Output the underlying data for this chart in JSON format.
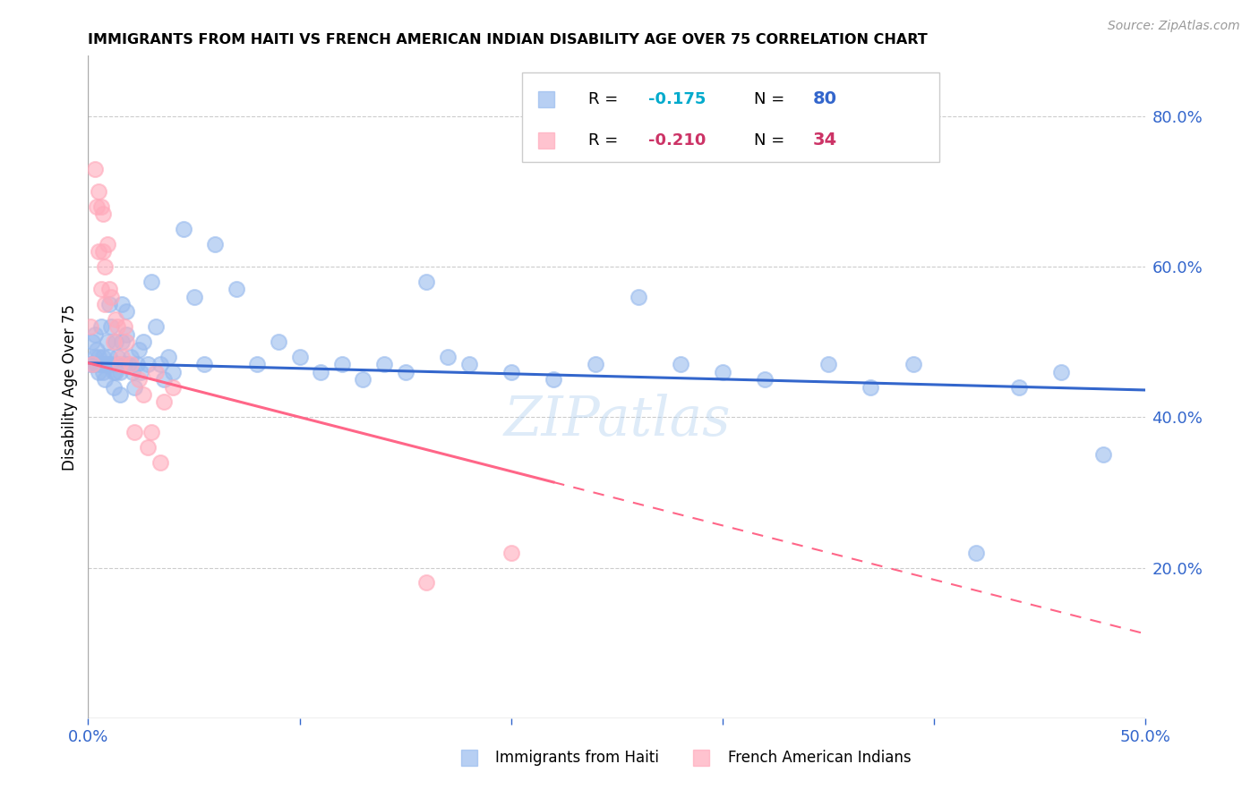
{
  "title": "IMMIGRANTS FROM HAITI VS FRENCH AMERICAN INDIAN DISABILITY AGE OVER 75 CORRELATION CHART",
  "source": "Source: ZipAtlas.com",
  "ylabel": "Disability Age Over 75",
  "blue_label": "Immigrants from Haiti",
  "pink_label": "French American Indians",
  "blue_R": -0.175,
  "blue_N": 80,
  "pink_R": -0.21,
  "pink_N": 34,
  "blue_color": "#99BBEE",
  "pink_color": "#FFAABB",
  "blue_line_color": "#3366CC",
  "pink_line_color": "#FF6688",
  "xlim": [
    0.0,
    0.5
  ],
  "ylim": [
    0.0,
    0.88
  ],
  "xtick_values": [
    0.0,
    0.1,
    0.2,
    0.3,
    0.4,
    0.5
  ],
  "ytick_right_values": [
    0.2,
    0.4,
    0.6,
    0.8
  ],
  "blue_intercept": 0.472,
  "blue_slope": -0.072,
  "pink_intercept": 0.472,
  "pink_slope": -0.72,
  "blue_x": [
    0.001,
    0.002,
    0.002,
    0.003,
    0.003,
    0.004,
    0.004,
    0.005,
    0.005,
    0.006,
    0.006,
    0.006,
    0.007,
    0.007,
    0.008,
    0.008,
    0.009,
    0.009,
    0.01,
    0.01,
    0.011,
    0.011,
    0.012,
    0.012,
    0.013,
    0.013,
    0.014,
    0.014,
    0.015,
    0.015,
    0.016,
    0.016,
    0.017,
    0.018,
    0.018,
    0.019,
    0.02,
    0.021,
    0.022,
    0.023,
    0.024,
    0.025,
    0.026,
    0.028,
    0.03,
    0.032,
    0.034,
    0.036,
    0.038,
    0.04,
    0.045,
    0.05,
    0.055,
    0.06,
    0.07,
    0.08,
    0.09,
    0.1,
    0.11,
    0.12,
    0.13,
    0.14,
    0.15,
    0.16,
    0.17,
    0.18,
    0.2,
    0.22,
    0.24,
    0.26,
    0.28,
    0.3,
    0.32,
    0.35,
    0.37,
    0.39,
    0.42,
    0.44,
    0.46,
    0.48
  ],
  "blue_y": [
    0.47,
    0.47,
    0.5,
    0.48,
    0.51,
    0.47,
    0.49,
    0.46,
    0.48,
    0.47,
    0.47,
    0.52,
    0.46,
    0.48,
    0.47,
    0.45,
    0.47,
    0.5,
    0.48,
    0.55,
    0.52,
    0.47,
    0.46,
    0.44,
    0.5,
    0.46,
    0.48,
    0.47,
    0.46,
    0.43,
    0.5,
    0.55,
    0.47,
    0.51,
    0.54,
    0.47,
    0.48,
    0.46,
    0.44,
    0.47,
    0.49,
    0.46,
    0.5,
    0.47,
    0.58,
    0.52,
    0.47,
    0.45,
    0.48,
    0.46,
    0.65,
    0.56,
    0.47,
    0.63,
    0.57,
    0.47,
    0.5,
    0.48,
    0.46,
    0.47,
    0.45,
    0.47,
    0.46,
    0.58,
    0.48,
    0.47,
    0.46,
    0.45,
    0.47,
    0.56,
    0.47,
    0.46,
    0.45,
    0.47,
    0.44,
    0.47,
    0.22,
    0.44,
    0.46,
    0.35
  ],
  "pink_x": [
    0.001,
    0.002,
    0.003,
    0.004,
    0.005,
    0.005,
    0.006,
    0.006,
    0.007,
    0.007,
    0.008,
    0.008,
    0.009,
    0.01,
    0.011,
    0.012,
    0.013,
    0.014,
    0.015,
    0.016,
    0.017,
    0.018,
    0.02,
    0.022,
    0.024,
    0.026,
    0.028,
    0.03,
    0.032,
    0.034,
    0.036,
    0.04,
    0.16,
    0.2
  ],
  "pink_y": [
    0.52,
    0.47,
    0.73,
    0.68,
    0.7,
    0.62,
    0.68,
    0.57,
    0.62,
    0.67,
    0.55,
    0.6,
    0.63,
    0.57,
    0.56,
    0.5,
    0.53,
    0.52,
    0.47,
    0.48,
    0.52,
    0.5,
    0.47,
    0.38,
    0.45,
    0.43,
    0.36,
    0.38,
    0.46,
    0.34,
    0.42,
    0.44,
    0.18,
    0.22
  ]
}
